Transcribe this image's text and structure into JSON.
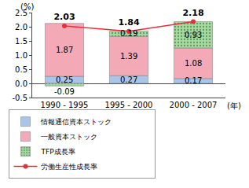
{
  "chart_data": {
    "type": "bar",
    "stacked": true,
    "categories": [
      "1990 - 1995",
      "1995 - 2000",
      "2000 - 2007"
    ],
    "xlabel": "(年)",
    "ylabel": "(%)",
    "series": [
      {
        "name": "情報通信資本ストック",
        "color": "#a9c6ea",
        "values": [
          0.25,
          0.27,
          0.17
        ]
      },
      {
        "name": "一般資本ストック",
        "color": "#f4a9b6",
        "values": [
          1.87,
          1.39,
          1.08
        ]
      },
      {
        "name": "TFP成長率",
        "color": "#a9d9a2",
        "values": [
          -0.09,
          0.19,
          0.93
        ]
      },
      {
        "name": "労働生産性成長率",
        "type": "line",
        "color": "#e8303c",
        "marker": "circle",
        "values": [
          2.03,
          1.84,
          2.18
        ]
      }
    ],
    "ylim": [
      -0.5,
      2.5
    ],
    "yticks": [
      -0.5,
      {
        "value": 0,
        "label": "0.0"
      },
      0.5,
      {
        "value": 1,
        "label": "1.0"
      },
      1.5,
      {
        "value": 2,
        "label": "2.0"
      },
      2.5
    ],
    "data_labels": true,
    "legend": "bottom",
    "grid": false
  }
}
